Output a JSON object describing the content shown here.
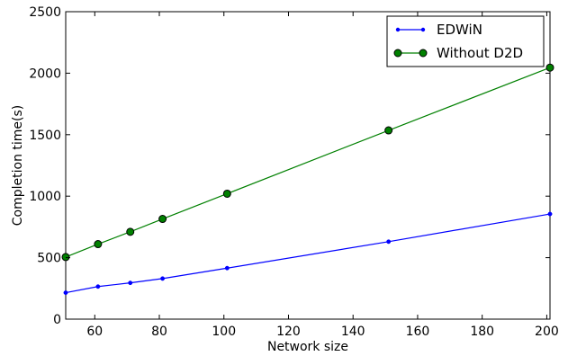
{
  "chart_data": {
    "type": "line",
    "xlabel": "Network size",
    "ylabel": "Completion time(s)",
    "xlim": [
      51,
      201
    ],
    "ylim": [
      0,
      2500
    ],
    "xticks": [
      60,
      80,
      100,
      120,
      140,
      160,
      180,
      200
    ],
    "yticks": [
      0,
      500,
      1000,
      1500,
      2000,
      2500
    ],
    "grid": false,
    "legend_position": "top-right",
    "series": [
      {
        "name": "EDWiN",
        "color": "#0000ff",
        "marker": "small-dot",
        "x": [
          51,
          61,
          71,
          81,
          101,
          151,
          201
        ],
        "y": [
          215,
          265,
          295,
          330,
          415,
          630,
          855
        ]
      },
      {
        "name": "Without D2D",
        "color": "#008000",
        "marker": "large-circle",
        "x": [
          51,
          61,
          71,
          81,
          101,
          151,
          201
        ],
        "y": [
          505,
          610,
          710,
          815,
          1020,
          1535,
          2045
        ]
      }
    ]
  }
}
